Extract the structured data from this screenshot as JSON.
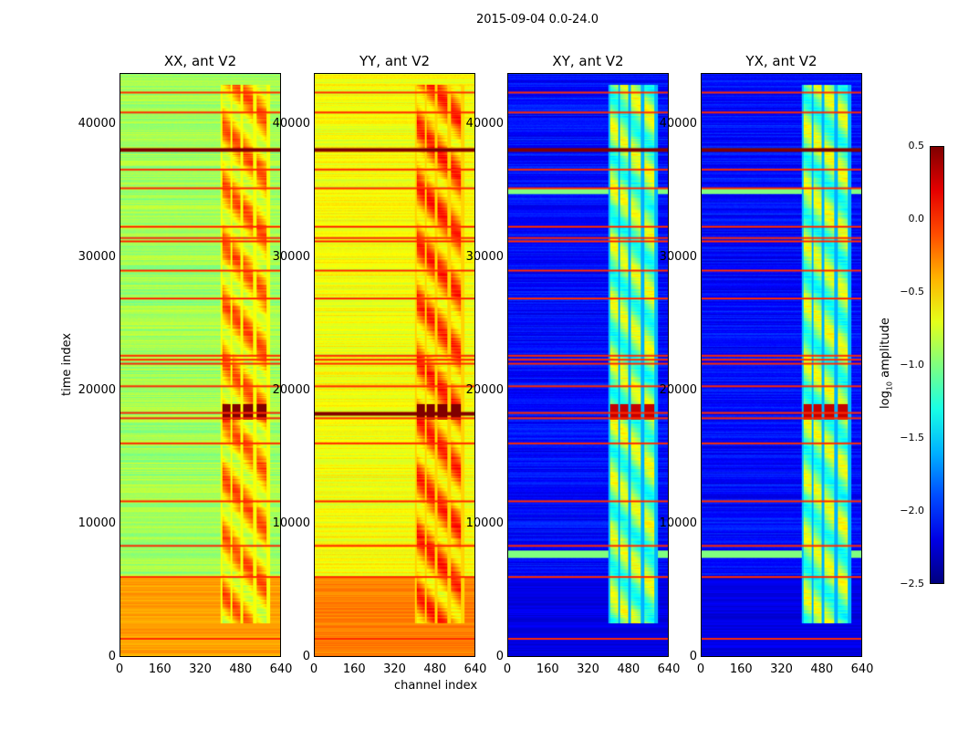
{
  "suptitle": "2015-09-04 0.0-24.0",
  "chart_data": {
    "type": "heatmap",
    "xlabel": "channel index",
    "ylabel": "time index",
    "xlim": [
      0,
      640
    ],
    "ylim": [
      0,
      43800
    ],
    "xticks": [
      "0",
      "160",
      "320",
      "480",
      "640"
    ],
    "yticks": [
      0,
      10000,
      20000,
      30000,
      40000
    ],
    "ytick_labels": [
      "0",
      "10000",
      "20000",
      "30000",
      "40000"
    ],
    "colormap": "jet",
    "colorbar": {
      "label_prefix": "log",
      "label_sub": "10",
      "label_suffix": " amplitude",
      "range": [
        -2.5,
        0.5
      ],
      "ticks": [
        "0.5",
        "0.0",
        "−0.5",
        "−1.0",
        "−1.5",
        "−2.0",
        "−2.5"
      ],
      "tick_values": [
        0.5,
        0.0,
        -0.5,
        -1.0,
        -1.5,
        -2.0,
        -2.5
      ]
    },
    "panels": [
      {
        "title": "XX, ant V2",
        "base": -0.9,
        "low_time_level": -0.35,
        "band_level": -0.45,
        "burst_level": 0.5,
        "show_ylabel": true
      },
      {
        "title": "YY, ant V2",
        "base": -0.65,
        "low_time_level": -0.25,
        "band_level": -0.3,
        "burst_level": 0.5,
        "show_ylabel": false
      },
      {
        "title": "XY, ant V2",
        "base": -2.1,
        "low_time_level": -2.2,
        "band_level": -1.0,
        "burst_level": 0.3,
        "show_ylabel": false
      },
      {
        "title": "YX, ant V2",
        "base": -2.1,
        "low_time_level": -2.2,
        "band_level": -1.0,
        "burst_level": 0.3,
        "show_ylabel": false
      }
    ],
    "band_channels": [
      [
        405,
        440
      ],
      [
        445,
        480
      ],
      [
        490,
        530
      ],
      [
        545,
        585
      ]
    ],
    "burst_time": [
      17800,
      19000
    ],
    "rfi_times": [
      42400,
      40900,
      38150,
      36600,
      35200,
      32300,
      31450,
      31200,
      29000,
      26900,
      22600,
      22300,
      22000,
      20300,
      18300,
      17900,
      16000,
      11650,
      8300,
      5950,
      1300
    ]
  }
}
